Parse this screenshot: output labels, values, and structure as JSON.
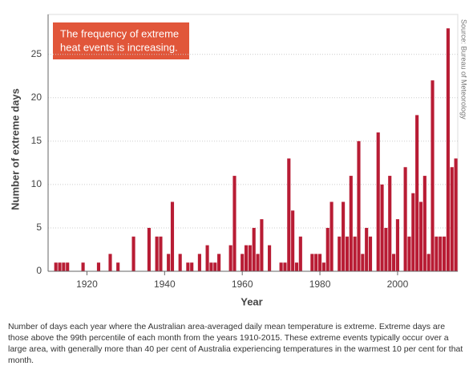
{
  "chart_data": {
    "type": "bar",
    "annotation": [
      "The frequency of extreme",
      "heat events is increasing."
    ],
    "source": "Source: Bureau of Meteorology",
    "x_label": "Year",
    "y_label": "Number of extreme days",
    "caption": "Number of days each year where the Australian area-averaged daily mean temperature is extreme. Extreme days are those above the 99th percentile of each month from the years 1910-2015. These extreme events typically occur over a large area, with generally more than 40 per cent of Australia experiencing temperatures in the warmest 10 per cent for that month.",
    "color": "#b81c34",
    "grid": true,
    "x": [
      1910,
      1911,
      1912,
      1913,
      1914,
      1915,
      1916,
      1917,
      1918,
      1919,
      1920,
      1921,
      1922,
      1923,
      1924,
      1925,
      1926,
      1927,
      1928,
      1929,
      1930,
      1931,
      1932,
      1933,
      1934,
      1935,
      1936,
      1937,
      1938,
      1939,
      1940,
      1941,
      1942,
      1943,
      1944,
      1945,
      1946,
      1947,
      1948,
      1949,
      1950,
      1951,
      1952,
      1953,
      1954,
      1955,
      1956,
      1957,
      1958,
      1959,
      1960,
      1961,
      1962,
      1963,
      1964,
      1965,
      1966,
      1967,
      1968,
      1969,
      1970,
      1971,
      1972,
      1973,
      1974,
      1975,
      1976,
      1977,
      1978,
      1979,
      1980,
      1981,
      1982,
      1983,
      1984,
      1985,
      1986,
      1987,
      1988,
      1989,
      1990,
      1991,
      1992,
      1993,
      1994,
      1995,
      1996,
      1997,
      1998,
      1999,
      2000,
      2001,
      2002,
      2003,
      2004,
      2005,
      2006,
      2007,
      2008,
      2009,
      2010,
      2011,
      2012,
      2013,
      2014,
      2015
    ],
    "values": [
      0,
      0,
      1,
      1,
      1,
      1,
      0,
      0,
      0,
      1,
      0,
      0,
      0,
      1,
      0,
      0,
      2,
      0,
      1,
      0,
      0,
      0,
      4,
      0,
      0,
      0,
      5,
      0,
      4,
      4,
      0,
      2,
      8,
      0,
      2,
      0,
      1,
      1,
      0,
      2,
      0,
      3,
      1,
      1,
      2,
      0,
      0,
      3,
      11,
      0,
      2,
      3,
      3,
      5,
      2,
      6,
      0,
      3,
      0,
      0,
      1,
      1,
      13,
      7,
      1,
      4,
      0,
      0,
      2,
      2,
      2,
      1,
      5,
      8,
      0,
      4,
      8,
      4,
      11,
      4,
      15,
      2,
      5,
      4,
      0,
      16,
      10,
      5,
      11,
      2,
      6,
      0,
      12,
      4,
      9,
      18,
      8,
      11,
      2,
      22,
      4,
      4,
      4,
      28,
      12,
      13
    ],
    "xlim": [
      1910,
      2015.5
    ],
    "xticks": [
      1920,
      1940,
      1960,
      1980,
      2000
    ],
    "ylim": [
      0,
      29.6
    ],
    "yticks": [
      0,
      5,
      10,
      15,
      20,
      25
    ]
  }
}
